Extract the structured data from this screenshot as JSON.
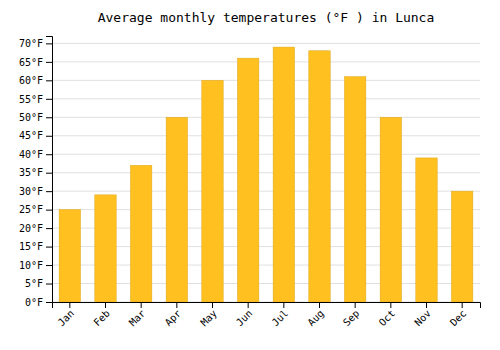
{
  "chart_data": {
    "type": "bar",
    "title": "Average monthly temperatures (°F ) in Lunca",
    "categories": [
      "Jan",
      "Feb",
      "Mar",
      "Apr",
      "May",
      "Jun",
      "Jul",
      "Aug",
      "Sep",
      "Oct",
      "Nov",
      "Dec"
    ],
    "values": [
      25,
      29,
      37,
      50,
      60,
      66,
      69,
      68,
      61,
      50,
      39,
      30
    ],
    "color": "#FFC020",
    "ylim": [
      0,
      72
    ],
    "yticks": [
      {
        "value": 0,
        "label": "0°F"
      },
      {
        "value": 5,
        "label": "5°F"
      },
      {
        "value": 10,
        "label": "10°F"
      },
      {
        "value": 15,
        "label": "15°F"
      },
      {
        "value": 20,
        "label": "20°F"
      },
      {
        "value": 25,
        "label": "25°F"
      },
      {
        "value": 30,
        "label": "30°F"
      },
      {
        "value": 35,
        "label": "35°F"
      },
      {
        "value": 40,
        "label": "40°F"
      },
      {
        "value": 45,
        "label": "45°F"
      },
      {
        "value": 50,
        "label": "50°F"
      },
      {
        "value": 55,
        "label": "55°F"
      },
      {
        "value": 60,
        "label": "60°F"
      },
      {
        "value": 65,
        "label": "65°F"
      },
      {
        "value": 70,
        "label": "70°F"
      }
    ],
    "grid": true
  }
}
